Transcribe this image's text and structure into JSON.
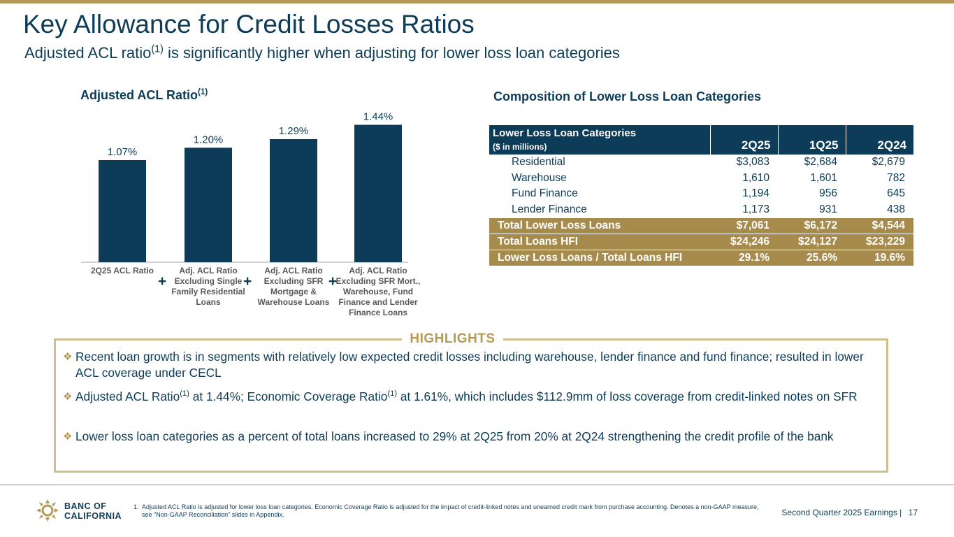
{
  "slide": {
    "title": "Key Allowance for Credit Losses Ratios",
    "subtitle_main": "Adjusted ACL ratio",
    "subtitle_sup": "(1)",
    "subtitle_rest": " is significantly higher when adjusting for lower loss loan categories",
    "colors": {
      "navy": "#0c3c57",
      "gold": "#b59a57",
      "gold_row": "#a78b4d"
    }
  },
  "chart_data": {
    "type": "bar",
    "title": "Adjusted ACL Ratio",
    "title_sup": "(1)",
    "categories": [
      "2Q25 ACL Ratio",
      "Adj. ACL Ratio Excluding Single Family Residential Loans",
      "Adj. ACL Ratio Excluding SFR Mortgage & Warehouse Loans",
      "Adj. ACL Ratio Excluding SFR Mort., Warehouse, Fund Finance and Lender Finance Loans"
    ],
    "values": [
      1.07,
      1.2,
      1.29,
      1.44
    ],
    "data_labels": [
      "1.07%",
      "1.20%",
      "1.29%",
      "1.44%"
    ],
    "ylim": [
      0,
      1.6
    ],
    "xlabel": "",
    "ylabel": "",
    "operators": [
      "+",
      "+",
      "+"
    ]
  },
  "table": {
    "title": "Composition of Lower Loss Loan Categories",
    "header_main": "Lower Loss Loan Categories",
    "header_sub": "($ in millions)",
    "columns": [
      "2Q25",
      "1Q25",
      "2Q24"
    ],
    "rows": [
      {
        "label": "Residential",
        "values": [
          "$3,083",
          "$2,684",
          "$2,679"
        ]
      },
      {
        "label": "Warehouse",
        "values": [
          "1,610",
          "1,601",
          "782"
        ]
      },
      {
        "label": "Fund Finance",
        "values": [
          "1,194",
          "956",
          "645"
        ]
      },
      {
        "label": "Lender Finance",
        "values": [
          "1,173",
          "931",
          "438"
        ]
      }
    ],
    "totals": [
      {
        "label": "Total Lower Loss Loans",
        "values": [
          "$7,061",
          "$6,172",
          "$4,544"
        ]
      },
      {
        "label": "Total Loans HFI",
        "values": [
          "$24,246",
          "$24,127",
          "$23,229"
        ]
      },
      {
        "label": "Lower Loss Loans  / Total Loans HFI",
        "values": [
          "29.1%",
          "25.6%",
          "19.6%"
        ]
      }
    ]
  },
  "highlights": {
    "title": "HIGHLIGHTS",
    "bullet_glyph": "❖",
    "item1": "Recent loan growth is in segments with relatively low expected credit losses including warehouse, lender finance and fund finance; resulted in lower ACL coverage under CECL",
    "item2_a": "Adjusted ACL Ratio",
    "item2_sup1": "(1)",
    "item2_b": " at 1.44%; Economic Coverage Ratio",
    "item2_sup2": "(1)",
    "item2_c": " at 1.61%, which includes $112.9mm of loss coverage from credit-linked notes on SFR",
    "item3": "Lower loss loan categories as a percent of total loans increased to 29% at 2Q25 from 20% at 2Q24 strengthening the credit profile of the bank"
  },
  "footer": {
    "logo_line1": "BANC OF",
    "logo_line2": "CALIFORNIA",
    "footnote_num": "1.",
    "footnote_text": "Adjusted ACL Ratio is adjusted for lower loss loan categories. Economic Coverage Ratio is adjusted for the impact of credit-linked notes and unearned credit mark from purchase accounting. Denotes a non-GAAP measure, see \"Non-GAAP Reconciliation\" slides in Appendix.",
    "report_label": "Second Quarter 2025 Earnings |",
    "page_number": "17"
  }
}
